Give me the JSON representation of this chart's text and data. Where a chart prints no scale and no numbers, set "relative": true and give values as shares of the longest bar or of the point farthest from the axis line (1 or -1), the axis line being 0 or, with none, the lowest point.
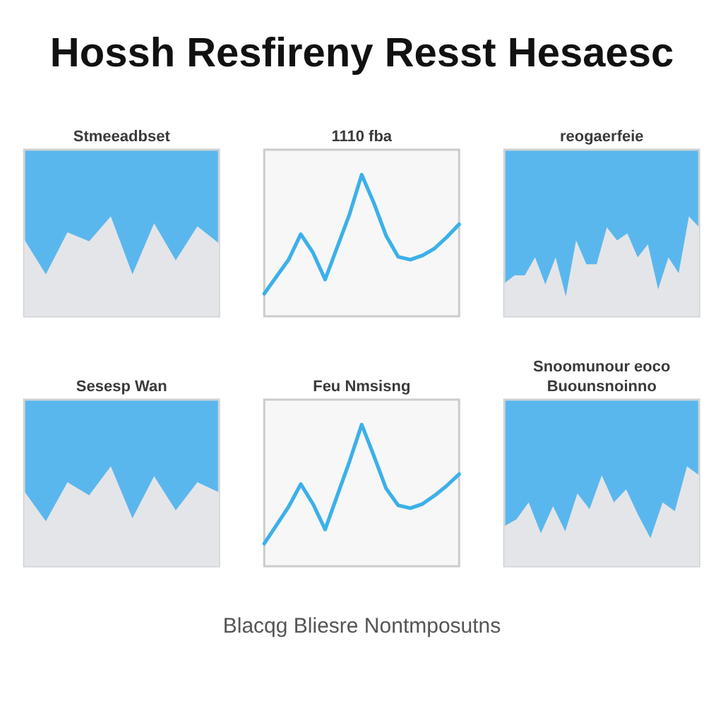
{
  "chart_data": [
    {
      "type": "other",
      "title": "Hossh Resfireny Resst Hesaesc"
    },
    {
      "type": "area",
      "title": "Stmeeadbset",
      "relative": true,
      "categories": [
        null,
        null,
        null,
        null,
        null,
        null,
        null,
        null,
        null,
        null
      ],
      "series": [
        {
          "color": "#e4e5e8",
          "values": [
            0.77,
            0.42,
            0.84,
            0.75,
            1,
            0.42,
            0.93,
            0.56,
            0.9,
            0.73
          ]
        }
      ]
    },
    {
      "type": "line",
      "title": "1110 fba",
      "relative": true,
      "categories": [
        null,
        null,
        null,
        null,
        null,
        null,
        null,
        null,
        null,
        null,
        null,
        null,
        null,
        null,
        null,
        null,
        null
      ],
      "series": [
        {
          "color": "#3db0ea",
          "values": [
            0.16,
            0.28,
            0.4,
            0.58,
            0.45,
            0.26,
            0.49,
            0.72,
            1,
            0.8,
            0.57,
            0.42,
            0.4,
            0.43,
            0.48,
            0.56,
            0.65
          ]
        }
      ]
    },
    {
      "type": "area",
      "title": "reogaerfeie",
      "relative": true,
      "categories": [
        null,
        null,
        null,
        null,
        null,
        null,
        null,
        null,
        null,
        null,
        null,
        null,
        null,
        null,
        null,
        null,
        null,
        null,
        null,
        null
      ],
      "series": [
        {
          "color": "#e4e5e8",
          "values": [
            0.33,
            0.41,
            0.41,
            0.59,
            0.32,
            0.59,
            0.2,
            0.76,
            0.52,
            0.52,
            0.89,
            0.76,
            0.83,
            0.59,
            0.72,
            0.27,
            0.59,
            0.43,
            1,
            0.89
          ]
        }
      ]
    },
    {
      "type": "area",
      "title": "Sesesp Wan",
      "relative": true,
      "categories": [
        null,
        null,
        null,
        null,
        null,
        null,
        null,
        null,
        null,
        null
      ],
      "series": [
        {
          "color": "#e4e5e8",
          "values": [
            0.75,
            0.45,
            0.84,
            0.71,
            1,
            0.48,
            0.9,
            0.56,
            0.84,
            0.74
          ]
        }
      ]
    },
    {
      "type": "line",
      "title": "Feu Nmsisng",
      "relative": true,
      "categories": [
        null,
        null,
        null,
        null,
        null,
        null,
        null,
        null,
        null,
        null,
        null,
        null,
        null,
        null,
        null,
        null,
        null
      ],
      "series": [
        {
          "color": "#3db0ea",
          "values": [
            0.16,
            0.29,
            0.42,
            0.58,
            0.44,
            0.26,
            0.5,
            0.74,
            1,
            0.78,
            0.55,
            0.43,
            0.41,
            0.44,
            0.5,
            0.57,
            0.65
          ]
        }
      ]
    },
    {
      "type": "area",
      "title": "Snoomunour eoco",
      "subtitle": "Buounsnoinno",
      "relative": true,
      "categories": [
        null,
        null,
        null,
        null,
        null,
        null,
        null,
        null,
        null,
        null,
        null,
        null,
        null,
        null,
        null,
        null,
        null
      ],
      "series": [
        {
          "color": "#e4e5e8",
          "values": [
            0.4,
            0.47,
            0.64,
            0.33,
            0.6,
            0.35,
            0.73,
            0.57,
            0.91,
            0.64,
            0.77,
            0.51,
            0.28,
            0.64,
            0.55,
            1,
            0.91
          ]
        }
      ]
    },
    {
      "type": "other",
      "annotations": [
        "Blacqg Bliesre Nontmposutns"
      ]
    }
  ]
}
